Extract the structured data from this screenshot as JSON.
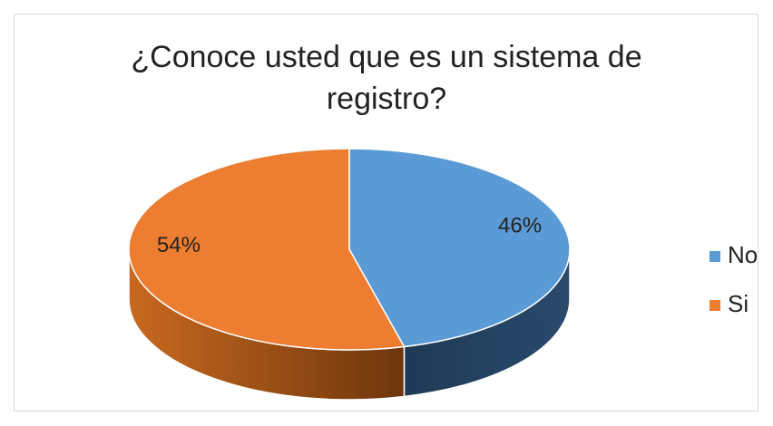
{
  "chart_data": {
    "type": "pie",
    "title": "¿Conoce usted que es un sistema de registro?",
    "categories": [
      "No",
      "Si"
    ],
    "values": [
      46,
      54
    ],
    "value_labels": [
      "46%",
      "54%"
    ],
    "colors": [
      "#5b9bd5",
      "#ed7d31"
    ],
    "legend": "right"
  }
}
